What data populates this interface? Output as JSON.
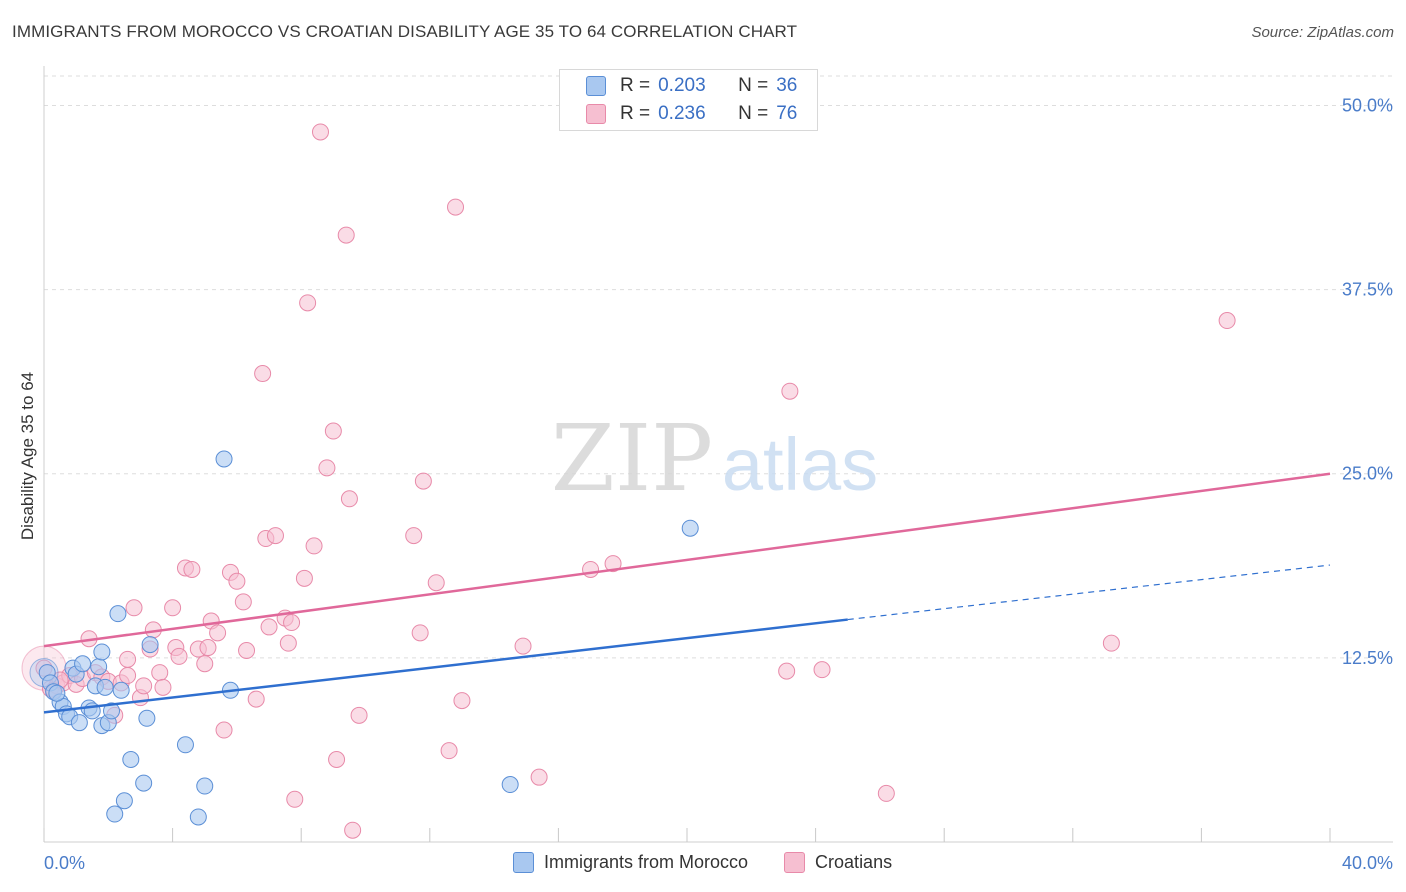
{
  "header": {
    "title": "IMMIGRANTS FROM MOROCCO VS CROATIAN DISABILITY AGE 35 TO 64 CORRELATION CHART",
    "source": "Source: ZipAtlas.com"
  },
  "watermark": {
    "part1": "ZIP",
    "part2": "atlas"
  },
  "legend_top": [
    {
      "r_label": "R =",
      "r_value": "0.203",
      "n_label": "N =",
      "n_value": "36"
    },
    {
      "r_label": "R =",
      "r_value": "0.236",
      "n_label": "N =",
      "n_value": "76"
    }
  ],
  "colors": {
    "morocco_fill": "#a9c8f0",
    "morocco_stroke": "#5b8fd6",
    "morocco_line": "#2f6fcf",
    "croatian_fill": "#f6bfd1",
    "croatian_stroke": "#e88aa9",
    "croatian_line": "#e0689a",
    "tick_text": "#4a7cc9",
    "grid": "#dddddd"
  },
  "chart_data": {
    "type": "scatter",
    "title": "IMMIGRANTS FROM MOROCCO VS CROATIAN DISABILITY AGE 35 TO 64 CORRELATION CHART",
    "xlabel": "",
    "ylabel": "Disability Age 35 to 64",
    "xlim": [
      0,
      40
    ],
    "ylim": [
      0,
      52
    ],
    "x_tick_labels": [
      "0.0%",
      "40.0%"
    ],
    "y_ticks": [
      12.5,
      25.0,
      37.5,
      50.0
    ],
    "y_tick_labels": [
      "12.5%",
      "25.0%",
      "37.5%",
      "50.0%"
    ],
    "grid": true,
    "series": [
      {
        "name": "Immigrants from Morocco",
        "r": 0.203,
        "n": 36,
        "trend": {
          "x0": 0,
          "y0": 8.8,
          "x1": 25,
          "y1": 15.1,
          "dashed_to_x": 40,
          "dashed_to_y": 18.8
        },
        "points": [
          [
            0.1,
            11.5
          ],
          [
            0.2,
            10.8
          ],
          [
            0.3,
            10.2
          ],
          [
            0.5,
            9.5
          ],
          [
            0.6,
            9.2
          ],
          [
            0.7,
            8.7
          ],
          [
            0.8,
            8.5
          ],
          [
            0.9,
            11.8
          ],
          [
            1.0,
            11.4
          ],
          [
            1.1,
            8.1
          ],
          [
            1.2,
            12.1
          ],
          [
            1.4,
            9.1
          ],
          [
            1.5,
            8.9
          ],
          [
            1.6,
            10.6
          ],
          [
            1.7,
            11.9
          ],
          [
            1.8,
            7.9
          ],
          [
            1.8,
            12.9
          ],
          [
            1.9,
            10.5
          ],
          [
            2.0,
            8.1
          ],
          [
            2.1,
            8.9
          ],
          [
            2.2,
            1.9
          ],
          [
            2.3,
            15.5
          ],
          [
            2.4,
            10.3
          ],
          [
            2.5,
            2.8
          ],
          [
            2.7,
            5.6
          ],
          [
            3.1,
            4.0
          ],
          [
            3.2,
            8.4
          ],
          [
            3.3,
            13.4
          ],
          [
            4.4,
            6.6
          ],
          [
            4.8,
            1.7
          ],
          [
            5.0,
            3.8
          ],
          [
            5.6,
            26.0
          ],
          [
            5.8,
            10.3
          ],
          [
            14.5,
            3.9
          ],
          [
            20.1,
            21.3
          ],
          [
            0.4,
            10.1
          ]
        ]
      },
      {
        "name": "Croatians",
        "r": 0.236,
        "n": 76,
        "trend": {
          "x0": 0,
          "y0": 13.3,
          "x1": 40,
          "y1": 25.0
        },
        "points": [
          [
            0.0,
            11.8
          ],
          [
            0.2,
            10.4
          ],
          [
            0.4,
            10.6
          ],
          [
            0.6,
            10.8
          ],
          [
            0.8,
            11.3
          ],
          [
            1.0,
            10.7
          ],
          [
            1.2,
            11.1
          ],
          [
            1.4,
            13.8
          ],
          [
            1.6,
            11.5
          ],
          [
            1.8,
            11.2
          ],
          [
            2.0,
            10.9
          ],
          [
            2.2,
            8.6
          ],
          [
            2.4,
            10.8
          ],
          [
            2.6,
            11.3
          ],
          [
            2.6,
            12.4
          ],
          [
            2.8,
            15.9
          ],
          [
            3.0,
            9.8
          ],
          [
            3.1,
            10.6
          ],
          [
            3.3,
            13.1
          ],
          [
            3.4,
            14.4
          ],
          [
            3.6,
            11.5
          ],
          [
            3.7,
            10.5
          ],
          [
            4.0,
            15.9
          ],
          [
            4.1,
            13.2
          ],
          [
            4.2,
            12.6
          ],
          [
            4.4,
            18.6
          ],
          [
            4.6,
            18.5
          ],
          [
            4.8,
            13.1
          ],
          [
            5.0,
            12.1
          ],
          [
            5.1,
            13.2
          ],
          [
            5.2,
            15.0
          ],
          [
            5.4,
            14.2
          ],
          [
            5.6,
            7.6
          ],
          [
            5.8,
            18.3
          ],
          [
            6.0,
            17.7
          ],
          [
            6.2,
            16.3
          ],
          [
            6.3,
            13.0
          ],
          [
            6.6,
            9.7
          ],
          [
            6.8,
            31.8
          ],
          [
            6.9,
            20.6
          ],
          [
            7.0,
            14.6
          ],
          [
            7.2,
            20.8
          ],
          [
            7.5,
            15.2
          ],
          [
            7.6,
            13.5
          ],
          [
            7.7,
            14.9
          ],
          [
            7.8,
            2.9
          ],
          [
            8.1,
            17.9
          ],
          [
            8.2,
            36.6
          ],
          [
            8.4,
            20.1
          ],
          [
            8.6,
            48.2
          ],
          [
            8.8,
            25.4
          ],
          [
            9.0,
            27.9
          ],
          [
            9.1,
            5.6
          ],
          [
            9.4,
            41.2
          ],
          [
            9.5,
            23.3
          ],
          [
            9.6,
            0.8
          ],
          [
            9.8,
            8.6
          ],
          [
            11.5,
            20.8
          ],
          [
            11.7,
            14.2
          ],
          [
            11.8,
            24.5
          ],
          [
            12.2,
            17.6
          ],
          [
            12.6,
            6.2
          ],
          [
            12.8,
            43.1
          ],
          [
            13.0,
            9.6
          ],
          [
            14.9,
            13.3
          ],
          [
            15.4,
            4.4
          ],
          [
            17.0,
            18.5
          ],
          [
            17.7,
            18.9
          ],
          [
            23.1,
            11.6
          ],
          [
            23.2,
            30.6
          ],
          [
            24.2,
            11.7
          ],
          [
            26.2,
            3.3
          ],
          [
            33.2,
            13.5
          ],
          [
            36.8,
            35.4
          ],
          [
            0.3,
            10.3
          ],
          [
            0.5,
            11.0
          ]
        ]
      }
    ]
  },
  "legend_bottom": [
    {
      "label": "Immigrants from Morocco"
    },
    {
      "label": "Croatians"
    }
  ]
}
